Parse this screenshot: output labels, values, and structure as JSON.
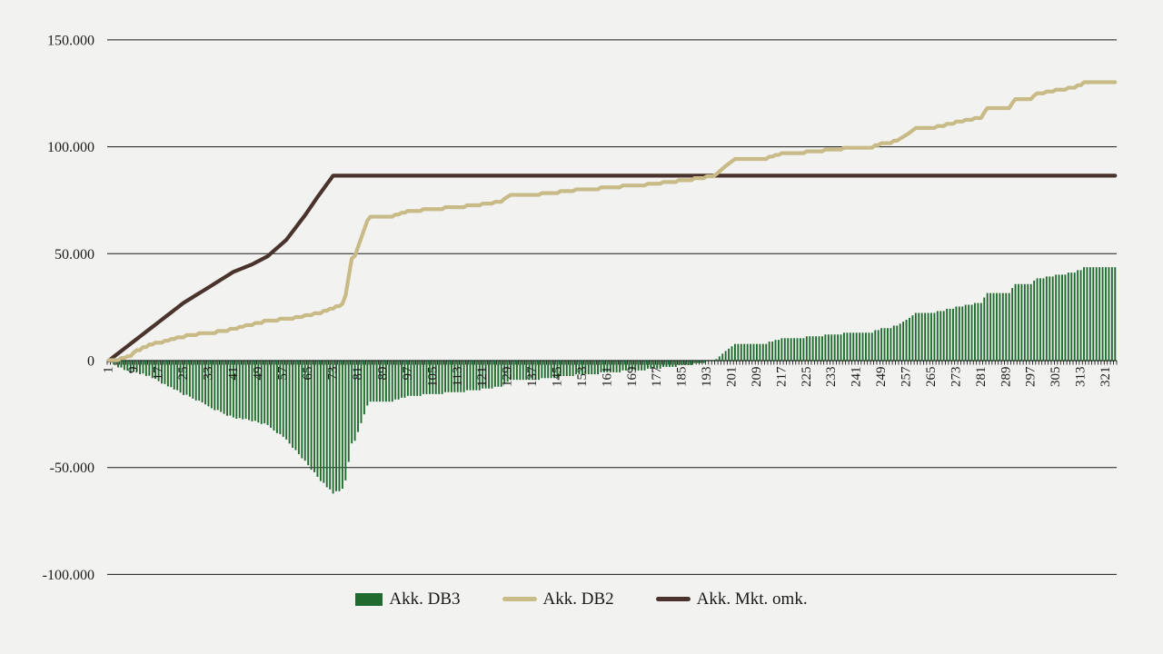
{
  "page": {
    "background": "#F2F2F0",
    "gridline_color": "#1a1a1a",
    "axis_color": "#000000",
    "text_color": "#1a1a1a"
  },
  "chart_data": {
    "type": "combo",
    "title": "",
    "grid": "horizontal",
    "legend_position": "bottom",
    "x_axis": {
      "points": 324,
      "label_every": 8,
      "labels": [
        "1",
        "9",
        "17",
        "25",
        "33",
        "41",
        "49",
        "57",
        "65",
        "73",
        "81",
        "89",
        "97",
        "105",
        "113",
        "121",
        "129",
        "137",
        "145",
        "153",
        "161",
        "169",
        "177",
        "185",
        "193",
        "201",
        "209",
        "217",
        "225",
        "233",
        "241",
        "249",
        "257",
        "265",
        "273",
        "281",
        "289",
        "297",
        "305",
        "313",
        "321"
      ]
    },
    "y_axis": {
      "min": -100000,
      "max": 150000,
      "step": 50000,
      "ticks": [
        {
          "label": "150.000",
          "value": 150000
        },
        {
          "label": "100.000",
          "value": 100000
        },
        {
          "label": "50.000",
          "value": 50000
        },
        {
          "label": "0",
          "value": 0
        },
        {
          "label": "-50.000",
          "value": -50000
        },
        {
          "label": "-100.000",
          "value": -100000
        }
      ]
    },
    "series": [
      {
        "name": "Akk. DB3",
        "type": "bar",
        "color": "#1F6B2F",
        "rule": "value = Akk. DB2 - Akk. Mkt. omk.",
        "approx_extremes": {
          "min_value": -61000,
          "min_at_x": 73,
          "end_value": 44300
        }
      },
      {
        "name": "Akk. DB2",
        "type": "line",
        "color": "#C9BB88",
        "step_quantum": 800,
        "anchors": [
          [
            1,
            200
          ],
          [
            6,
            1500
          ],
          [
            8,
            2600
          ],
          [
            10,
            4900
          ],
          [
            13,
            7000
          ],
          [
            15,
            8100
          ],
          [
            19,
            9300
          ],
          [
            23,
            10900
          ],
          [
            27,
            12300
          ],
          [
            31,
            13000
          ],
          [
            35,
            13600
          ],
          [
            39,
            14600
          ],
          [
            43,
            15800
          ],
          [
            46,
            17000
          ],
          [
            49,
            17900
          ],
          [
            52,
            19100
          ],
          [
            57,
            19700
          ],
          [
            61,
            20400
          ],
          [
            65,
            21500
          ],
          [
            69,
            22800
          ],
          [
            72,
            24300
          ],
          [
            76,
            26600
          ],
          [
            77,
            30500
          ],
          [
            79,
            47800
          ],
          [
            80,
            49000
          ],
          [
            84,
            65500
          ],
          [
            85,
            67300
          ],
          [
            92,
            67900
          ],
          [
            97,
            70000
          ],
          [
            103,
            71000
          ],
          [
            112,
            72100
          ],
          [
            118,
            72900
          ],
          [
            124,
            74000
          ],
          [
            127,
            74800
          ],
          [
            130,
            77500
          ],
          [
            141,
            78400
          ],
          [
            150,
            80000
          ],
          [
            158,
            80900
          ],
          [
            166,
            81900
          ],
          [
            172,
            82400
          ],
          [
            180,
            83700
          ],
          [
            187,
            84900
          ],
          [
            193,
            86200
          ],
          [
            196,
            87200
          ],
          [
            199,
            91000
          ],
          [
            202,
            94300
          ],
          [
            211,
            94600
          ],
          [
            214,
            95800
          ],
          [
            217,
            97000
          ],
          [
            227,
            98100
          ],
          [
            236,
            99500
          ],
          [
            243,
            99800
          ],
          [
            246,
            100300
          ],
          [
            249,
            101700
          ],
          [
            252,
            102400
          ],
          [
            255,
            103800
          ],
          [
            258,
            106500
          ],
          [
            260,
            108800
          ],
          [
            267,
            109700
          ],
          [
            273,
            111800
          ],
          [
            281,
            114000
          ],
          [
            283,
            118100
          ],
          [
            290,
            118600
          ],
          [
            292,
            122300
          ],
          [
            297,
            122900
          ],
          [
            299,
            125000
          ],
          [
            305,
            126700
          ],
          [
            311,
            128100
          ],
          [
            314,
            130200
          ],
          [
            318,
            130700
          ],
          [
            324,
            130800
          ]
        ]
      },
      {
        "name": "Akk. Mkt. omk.",
        "type": "line",
        "color": "#4A332C",
        "anchors": [
          [
            1,
            0
          ],
          [
            9,
            9000
          ],
          [
            25,
            27000
          ],
          [
            33,
            34200
          ],
          [
            41,
            41500
          ],
          [
            47,
            45000
          ],
          [
            52,
            48800
          ],
          [
            58,
            56500
          ],
          [
            64,
            68000
          ],
          [
            68,
            76500
          ],
          [
            73,
            86500
          ],
          [
            324,
            86500
          ]
        ]
      }
    ]
  }
}
